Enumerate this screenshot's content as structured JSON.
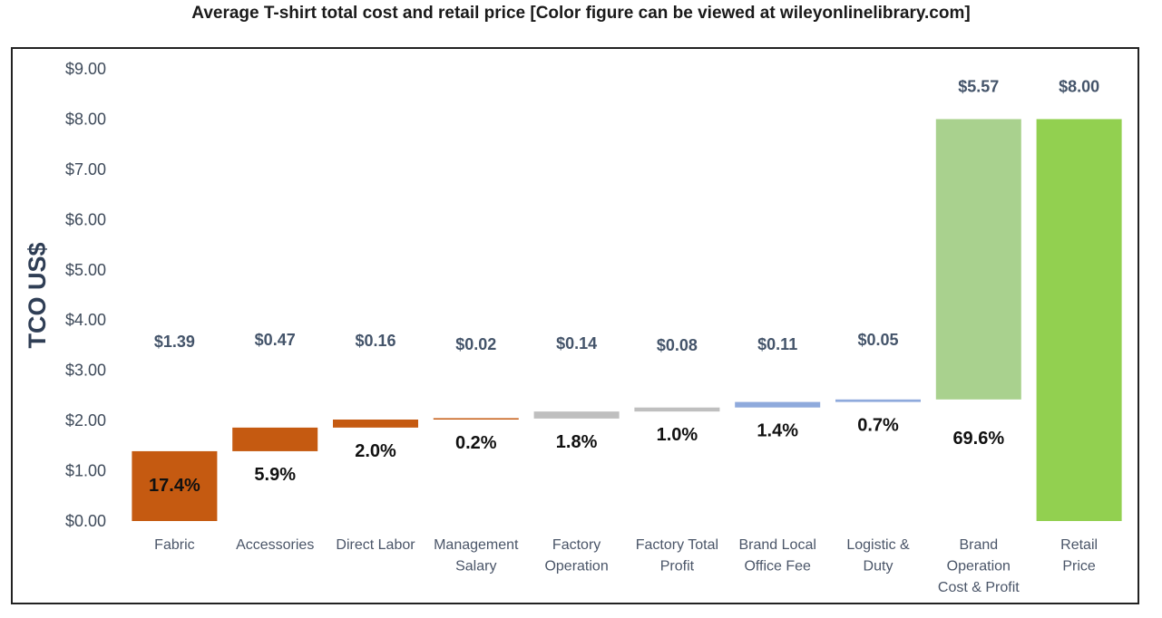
{
  "title": "Average T-shirt total cost and retail price [Color figure can be viewed at wileyonlinelibrary.com]",
  "chart_data": {
    "type": "bar",
    "subtype": "waterfall",
    "ylabel": "TCO US$",
    "xlabel": "",
    "ylim": [
      0,
      9
    ],
    "yticks": [
      "$0.00",
      "$1.00",
      "$2.00",
      "$3.00",
      "$4.00",
      "$5.00",
      "$6.00",
      "$7.00",
      "$8.00",
      "$9.00"
    ],
    "grid": false,
    "categories": [
      [
        "Fabric"
      ],
      [
        "Accessories"
      ],
      [
        "Direct Labor"
      ],
      [
        "Management",
        "Salary"
      ],
      [
        "Factory",
        "Operation"
      ],
      [
        "Factory Total",
        "Profit"
      ],
      [
        "Brand Local",
        "Office Fee"
      ],
      [
        "Logistic &",
        "Duty"
      ],
      [
        "Brand",
        "Operation",
        "Cost & Profit"
      ],
      [
        "Retail",
        "Price"
      ]
    ],
    "values": [
      1.39,
      0.47,
      0.16,
      0.02,
      0.14,
      0.08,
      0.11,
      0.05,
      5.57,
      8.0
    ],
    "bases": [
      0,
      1.39,
      1.86,
      2.02,
      2.04,
      2.18,
      2.26,
      2.37,
      2.42,
      0
    ],
    "value_labels": [
      "$1.39",
      "$0.47",
      "$0.16",
      "$0.02",
      "$0.14",
      "$0.08",
      "$0.11",
      "$0.05",
      "$5.57",
      "$8.00"
    ],
    "percent_labels": [
      "17.4%",
      "5.9%",
      "2.0%",
      "0.2%",
      "1.8%",
      "1.0%",
      "1.4%",
      "0.7%",
      "69.6%",
      ""
    ],
    "colors": [
      "#c55a11",
      "#c55a11",
      "#c55a11",
      "#c55a11",
      "#bfbfbf",
      "#bfbfbf",
      "#8faadc",
      "#8faadc",
      "#a9d18e",
      "#92d050"
    ]
  }
}
